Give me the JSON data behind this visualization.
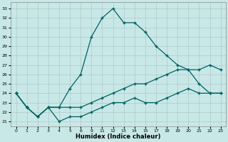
{
  "xlabel": "Humidex (Indice chaleur)",
  "background_color": "#c8e8e8",
  "grid_color": "#b0c8c8",
  "line_color": "#006060",
  "xtick_labels": [
    "0",
    "1",
    "2",
    "3",
    "4",
    "5",
    "6",
    "9",
    "11",
    "12",
    "13",
    "14",
    "15",
    "17",
    "18",
    "19",
    "20",
    "21",
    "22",
    "23"
  ],
  "yticks": [
    21,
    22,
    23,
    24,
    25,
    26,
    27,
    28,
    29,
    30,
    31,
    32,
    33
  ],
  "ylim": [
    20.5,
    33.7
  ],
  "line1_y": [
    24,
    22.5,
    21.5,
    22.5,
    22.5,
    24.5,
    26,
    30,
    32,
    33,
    31.5,
    31.5,
    30.5,
    29,
    28,
    27,
    26.5,
    25,
    24,
    24
  ],
  "line2_y": [
    24,
    22.5,
    21.5,
    22.5,
    22.5,
    22.5,
    22.5,
    23,
    23.5,
    24,
    24.5,
    25,
    25,
    25.5,
    26,
    26.5,
    26.5,
    26.5,
    27,
    26.5
  ],
  "line3_y": [
    24,
    22.5,
    21.5,
    22.5,
    21,
    21.5,
    21.5,
    22,
    22.5,
    23,
    23,
    23.5,
    23,
    23,
    23.5,
    24,
    24.5,
    24,
    24,
    24
  ]
}
